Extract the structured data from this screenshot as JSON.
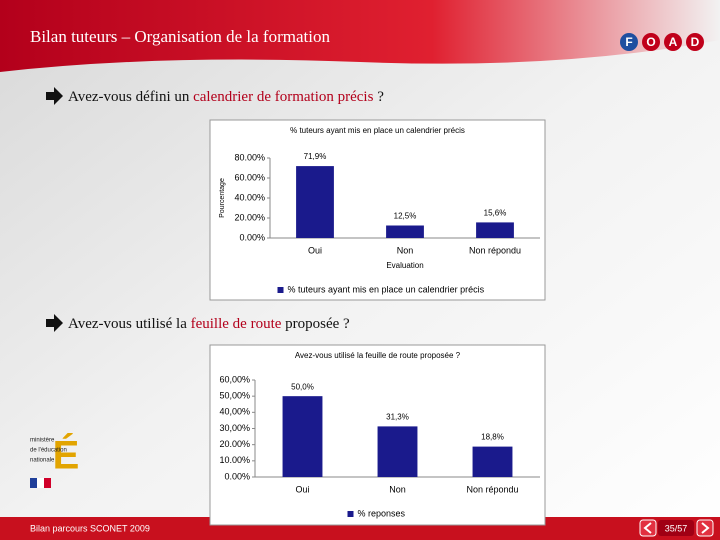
{
  "header": {
    "title": "Bilan tuteurs – Organisation de la formation",
    "logo": [
      "F",
      "O",
      "A",
      "D"
    ]
  },
  "questions": [
    {
      "parts": [
        "Avez-vous défini un ",
        "calendrier de formation précis",
        " ?"
      ]
    },
    {
      "parts": [
        "Avez-vous utilisé la ",
        "feuille de route",
        " proposée ?"
      ]
    }
  ],
  "chart_data": [
    {
      "type": "bar",
      "title": "% tuteurs ayant mis en place un calendrier précis",
      "ylabel": "Pourcentage",
      "xlabel": "Evaluation",
      "categories": [
        "Oui",
        "Non",
        "Non répondu"
      ],
      "series": [
        {
          "name": "% tuteurs ayant mis en place un calendrier précis",
          "color": "#1a1a8c",
          "values": [
            71.9,
            12.5,
            15.6
          ],
          "value_labels": [
            "71,9%",
            "12,5%",
            "15,6%"
          ]
        }
      ],
      "ylim": [
        0,
        80
      ],
      "yticks": [
        {
          "value": 0,
          "label": "0.00%"
        },
        {
          "value": 20,
          "label": "20.00%"
        },
        {
          "value": 40,
          "label": "40.00%"
        },
        {
          "value": 60,
          "label": "60.00%"
        },
        {
          "value": 80,
          "label": "80.00%"
        }
      ]
    },
    {
      "type": "bar",
      "title": "Avez-vous utilisé la feuille de route proposée ?",
      "categories": [
        "Oui",
        "Non",
        "Non répondu"
      ],
      "series": [
        {
          "name": "% reponses",
          "color": "#1a1a8c",
          "values": [
            50.0,
            31.3,
            18.8
          ],
          "value_labels": [
            "50,0%",
            "31,3%",
            "18,8%"
          ]
        }
      ],
      "ylim": [
        0,
        60
      ],
      "yticks": [
        {
          "value": 0,
          "label": "0.00%"
        },
        {
          "value": 10,
          "label": "10.00%"
        },
        {
          "value": 20,
          "label": "20.00%"
        },
        {
          "value": 30,
          "label": "30,00%"
        },
        {
          "value": 40,
          "label": "40,00%"
        },
        {
          "value": 50,
          "label": "50,00%"
        },
        {
          "value": 60,
          "label": "60,00%"
        }
      ]
    }
  ],
  "ministry": [
    "ministère",
    "de l'éducation",
    "nationale"
  ],
  "footer": {
    "text": "Bilan parcours SCONET 2009",
    "page": "35/57"
  }
}
